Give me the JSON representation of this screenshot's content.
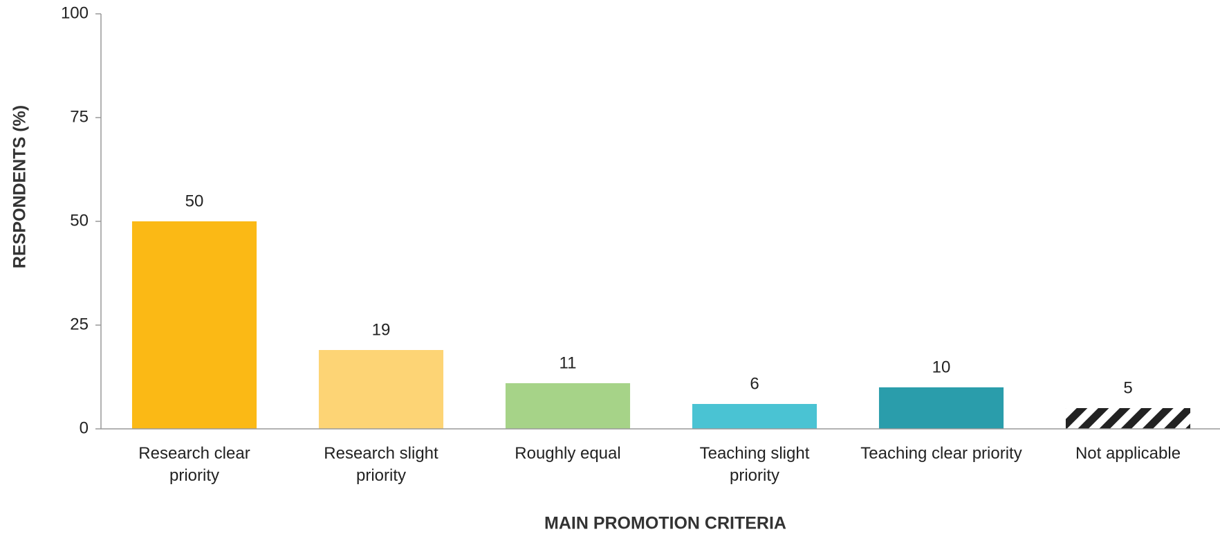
{
  "chart_data": {
    "type": "bar",
    "xlabel": "MAIN PROMOTION CRITERIA",
    "ylabel": "RESPONDENTS (%)",
    "categories": [
      "Research clear\npriority",
      "Research slight\npriority",
      "Roughly equal",
      "Teaching slight\npriority",
      "Teaching clear priority",
      "Not applicable"
    ],
    "values": [
      50,
      19,
      11,
      6,
      10,
      5
    ],
    "colors": [
      "#fbb915",
      "#fdd475",
      "#a6d388",
      "#4ac3d3",
      "#2a9dab",
      "#222222"
    ],
    "hatch": [
      false,
      false,
      false,
      false,
      false,
      true
    ],
    "ylim": [
      0,
      100
    ],
    "yticks": [
      0,
      25,
      50,
      75,
      100
    ],
    "grid": false
  }
}
